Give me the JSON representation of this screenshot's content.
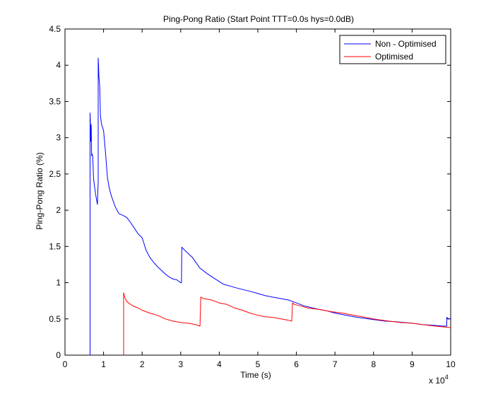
{
  "chart_data": {
    "type": "line",
    "title": "Ping-Pong Ratio (Start Point TTT=0.0s hys=0.0dB)",
    "xlabel": "Time (s)",
    "ylabel": "Ping-Pong Ratio (%)",
    "x_multiplier_label": "x 10",
    "x_multiplier_exponent": "4",
    "xlim": [
      0,
      10
    ],
    "ylim": [
      0,
      4.5
    ],
    "xticks": [
      "0",
      "1",
      "2",
      "3",
      "4",
      "5",
      "6",
      "7",
      "8",
      "9",
      "10"
    ],
    "yticks": [
      "0",
      "0.5",
      "1",
      "1.5",
      "2",
      "2.5",
      "3",
      "3.5",
      "4",
      "4.5"
    ],
    "grid": false,
    "legend_position": "top-right",
    "series": [
      {
        "name": "Non - Optimised",
        "color": "#0000ff",
        "x": [
          0.65,
          0.65,
          0.67,
          0.68,
          0.69,
          0.7,
          0.72,
          0.74,
          0.76,
          0.8,
          0.84,
          0.86,
          0.86,
          0.87,
          0.88,
          0.9,
          0.92,
          0.95,
          1.0,
          1.05,
          1.1,
          1.15,
          1.2,
          1.3,
          1.4,
          1.5,
          1.6,
          1.7,
          1.8,
          1.9,
          2.0,
          2.1,
          2.2,
          2.3,
          2.4,
          2.5,
          2.6,
          2.7,
          2.8,
          2.9,
          3.0,
          3.02,
          3.03,
          3.1,
          3.2,
          3.3,
          3.5,
          3.7,
          3.9,
          4.1,
          4.3,
          4.5,
          4.8,
          5.0,
          5.2,
          5.5,
          5.8,
          5.9,
          6.0,
          6.2,
          6.5,
          6.8,
          7.0,
          7.3,
          7.6,
          8.0,
          8.3,
          8.6,
          9.0,
          9.3,
          9.6,
          9.8,
          9.9,
          9.9,
          9.95,
          10.0
        ],
        "y": [
          0.0,
          3.34,
          2.95,
          3.18,
          2.75,
          2.78,
          2.74,
          2.45,
          2.35,
          2.2,
          2.08,
          2.4,
          4.1,
          4.0,
          3.85,
          3.72,
          3.3,
          3.18,
          3.1,
          2.8,
          2.45,
          2.3,
          2.2,
          2.05,
          1.95,
          1.93,
          1.9,
          1.83,
          1.75,
          1.67,
          1.62,
          1.45,
          1.35,
          1.28,
          1.22,
          1.17,
          1.12,
          1.08,
          1.05,
          1.04,
          1.0,
          1.0,
          1.49,
          1.45,
          1.4,
          1.35,
          1.2,
          1.12,
          1.05,
          0.98,
          0.95,
          0.92,
          0.88,
          0.85,
          0.82,
          0.79,
          0.76,
          0.74,
          0.72,
          0.68,
          0.64,
          0.61,
          0.58,
          0.55,
          0.52,
          0.49,
          0.47,
          0.46,
          0.44,
          0.42,
          0.41,
          0.4,
          0.4,
          0.52,
          0.5,
          0.5
        ]
      },
      {
        "name": "Optimised",
        "color": "#ff0000",
        "x": [
          1.52,
          1.52,
          1.55,
          1.6,
          1.7,
          1.8,
          1.9,
          2.0,
          2.2,
          2.4,
          2.6,
          2.8,
          3.0,
          3.2,
          3.4,
          3.5,
          3.52,
          3.6,
          3.8,
          4.0,
          4.2,
          4.4,
          4.6,
          4.8,
          5.0,
          5.2,
          5.4,
          5.6,
          5.8,
          5.88,
          5.9,
          5.95,
          6.1,
          6.3,
          6.6,
          6.9,
          7.2,
          7.5,
          7.8,
          8.1,
          8.4,
          8.7,
          9.0,
          9.3,
          9.6,
          9.8,
          10.0
        ],
        "y": [
          0.0,
          0.86,
          0.8,
          0.74,
          0.7,
          0.67,
          0.65,
          0.62,
          0.58,
          0.55,
          0.5,
          0.47,
          0.45,
          0.44,
          0.42,
          0.4,
          0.8,
          0.78,
          0.76,
          0.72,
          0.7,
          0.65,
          0.62,
          0.58,
          0.55,
          0.53,
          0.52,
          0.5,
          0.48,
          0.47,
          0.72,
          0.7,
          0.68,
          0.65,
          0.63,
          0.6,
          0.58,
          0.55,
          0.52,
          0.49,
          0.47,
          0.45,
          0.44,
          0.42,
          0.4,
          0.39,
          0.38
        ]
      }
    ]
  }
}
